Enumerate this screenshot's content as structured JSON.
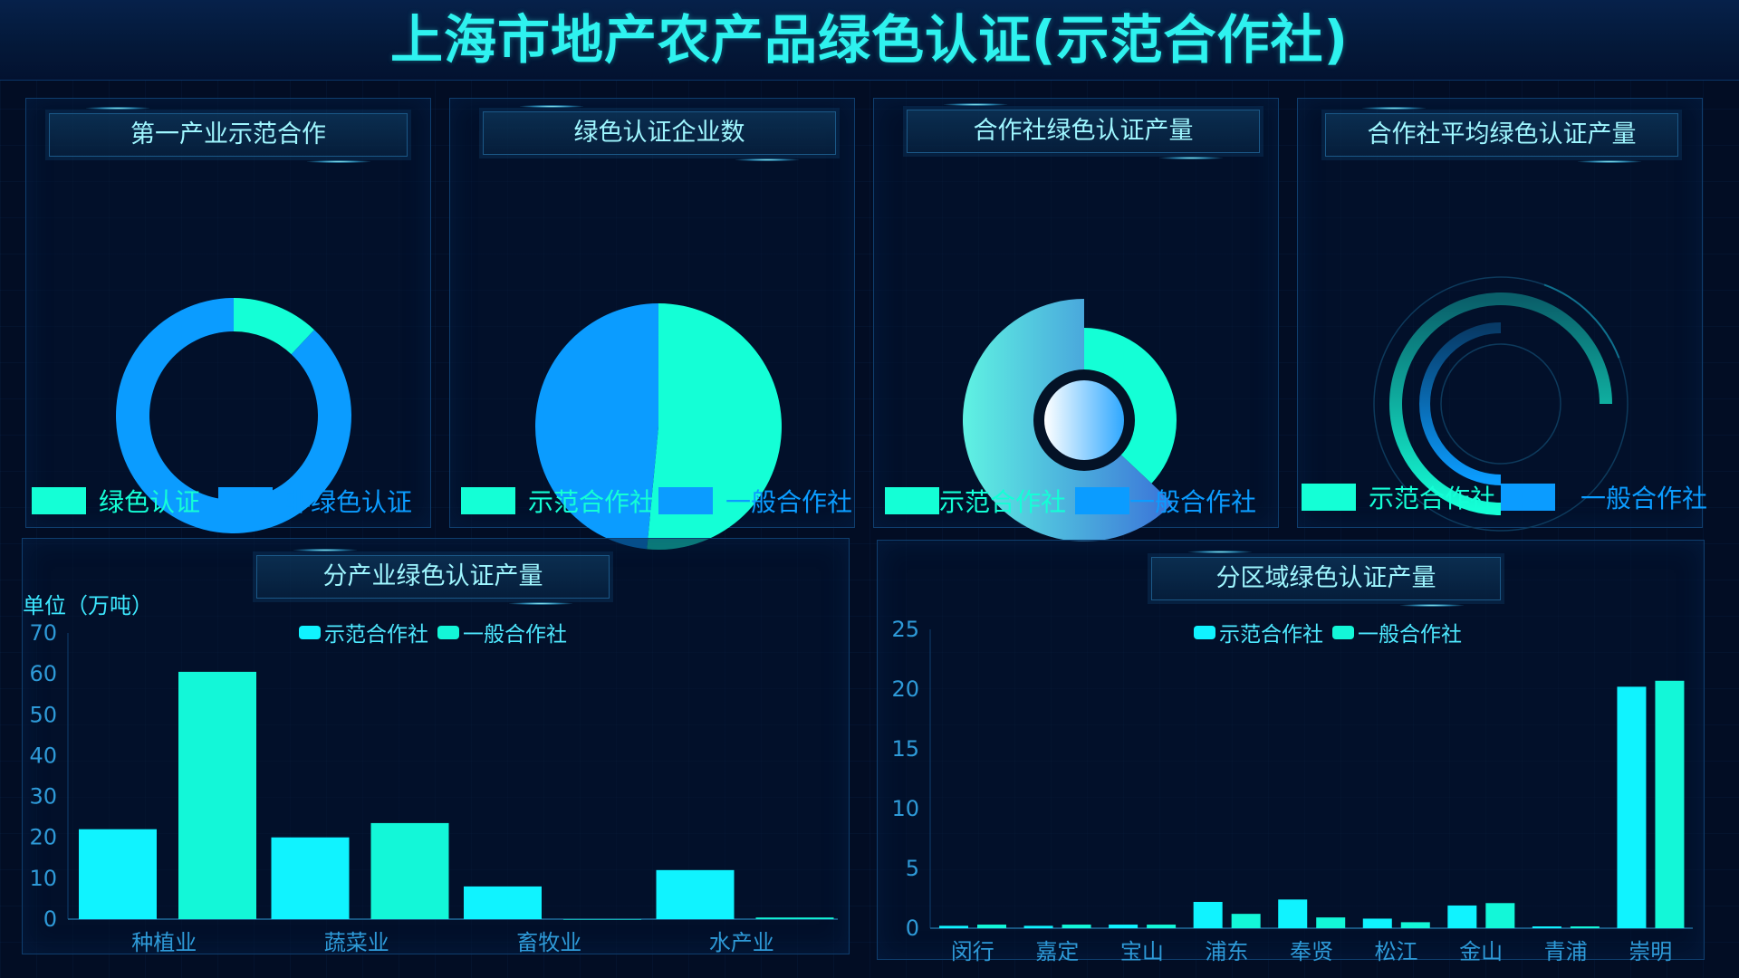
{
  "header": {
    "title": "上海市地产农产品绿色认证(示范合作社)"
  },
  "colors": {
    "cyan": "#10f3ff",
    "teal": "#13f7d8",
    "blue": "#0b9cff",
    "mint": "#14ffd6"
  },
  "panels": {
    "p1": {
      "title": "第一产业示范合作",
      "legend": [
        {
          "label": "绿色认证",
          "color": "#14ffd6"
        },
        {
          "label": "非绿色认证",
          "color": "#0b9cff"
        }
      ]
    },
    "p2": {
      "title": "绿色认证企业数",
      "legend": [
        {
          "label": "示范合作社",
          "color": "#14ffd6"
        },
        {
          "label": "一般合作社",
          "color": "#0b9cff"
        }
      ]
    },
    "p3": {
      "title": "合作社绿色认证产量",
      "legend": [
        {
          "label": "示范合作社",
          "color": "#14ffd6"
        },
        {
          "label": "一般合作社",
          "color": "#0b9cff"
        }
      ]
    },
    "p4": {
      "title": "合作社平均绿色认证产量",
      "legend": [
        {
          "label": "示范合作社",
          "color": "#14ffd6"
        },
        {
          "label": "一般合作社",
          "color": "#0b9cff"
        }
      ]
    },
    "p5": {
      "title": "分产业绿色认证产量",
      "unit": "单位（万吨）",
      "legend": [
        {
          "label": "示范合作社",
          "color": "#10f3ff"
        },
        {
          "label": "一般合作社",
          "color": "#13f7d8"
        }
      ]
    },
    "p6": {
      "title": "分区域绿色认证产量",
      "legend": [
        {
          "label": "示范合作社",
          "color": "#10f3ff"
        },
        {
          "label": "一般合作社",
          "color": "#13f7d8"
        }
      ]
    }
  },
  "chart_data": [
    {
      "type": "pie",
      "variant": "donut",
      "title": "第一产业示范合作",
      "labels": [
        "绿色认证",
        "非绿色认证"
      ],
      "values": [
        12,
        88
      ],
      "colors": [
        "#14ffd6",
        "#0b9cff"
      ],
      "legend_position": "bottom"
    },
    {
      "type": "pie",
      "title": "绿色认证企业数",
      "labels": [
        "示范合作社",
        "一般合作社"
      ],
      "values": [
        51.5,
        48.5
      ],
      "colors": [
        "#14ffd6",
        "#0b9cff"
      ],
      "legend_position": "bottom"
    },
    {
      "type": "pie",
      "variant": "rose",
      "title": "合作社绿色认证产量",
      "labels": [
        "示范合作社",
        "一般合作社"
      ],
      "values": [
        37,
        63
      ],
      "colors": [
        "#14ffd6",
        "#0b9cff"
      ],
      "legend_position": "bottom"
    },
    {
      "type": "pie",
      "variant": "radial-bar",
      "title": "合作社平均绿色认证产量",
      "labels": [
        "示范合作社",
        "一般合作社"
      ],
      "values": [
        75,
        50
      ],
      "colors": [
        "#14ffd6",
        "#0b9cff"
      ],
      "legend_position": "bottom"
    },
    {
      "type": "bar",
      "title": "分产业绿色认证产量",
      "ylabel": "单位（万吨）",
      "categories": [
        "种植业",
        "蔬菜业",
        "畜牧业",
        "水产业"
      ],
      "series": [
        {
          "name": "示范合作社",
          "values": [
            22,
            20,
            8,
            12
          ]
        },
        {
          "name": "一般合作社",
          "values": [
            60.5,
            23.5,
            0,
            0.4
          ]
        }
      ],
      "ylim": [
        0,
        70
      ],
      "yticks": [
        0,
        10,
        20,
        30,
        40,
        50,
        60,
        70
      ],
      "grid": false,
      "legend_position": "top"
    },
    {
      "type": "bar",
      "title": "分区域绿色认证产量",
      "categories": [
        "闵行",
        "嘉定",
        "宝山",
        "浦东",
        "奉贤",
        "松江",
        "金山",
        "青浦",
        "崇明"
      ],
      "series": [
        {
          "name": "示范合作社",
          "values": [
            0.2,
            0.2,
            0.3,
            2.2,
            2.4,
            0.8,
            1.9,
            0.15,
            20.2
          ]
        },
        {
          "name": "一般合作社",
          "values": [
            0.3,
            0.3,
            0.3,
            1.2,
            0.9,
            0.5,
            2.1,
            0.15,
            20.7
          ]
        }
      ],
      "ylim": [
        0,
        25
      ],
      "yticks": [
        0,
        5,
        10,
        15,
        20,
        25
      ],
      "grid": false,
      "legend_position": "top"
    }
  ]
}
